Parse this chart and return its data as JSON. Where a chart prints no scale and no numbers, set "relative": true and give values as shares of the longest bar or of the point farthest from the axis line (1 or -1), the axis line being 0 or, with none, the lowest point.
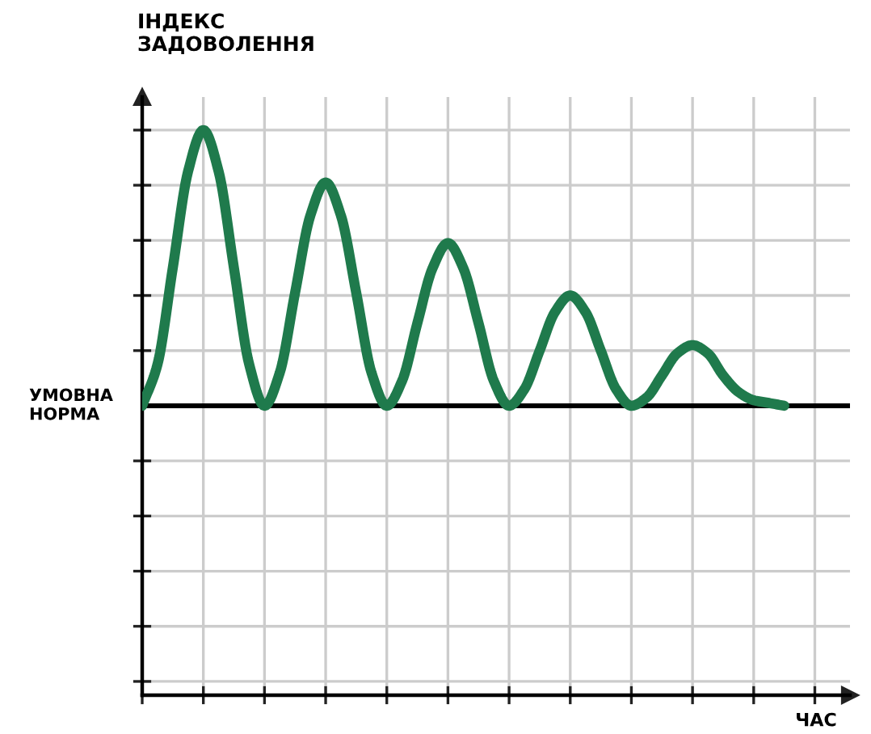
{
  "chart_data": {
    "type": "line",
    "relative": true,
    "ylabel": "ІНДЕКС\nЗАДОВОЛЕННЯ",
    "annotations": [
      "ЧАС"
    ],
    "categories": [
      null,
      null,
      null,
      null,
      null,
      null,
      null,
      null,
      null,
      null,
      null,
      null,
      null,
      null,
      null,
      null,
      null,
      null,
      null,
      null,
      null,
      null,
      null,
      null,
      null,
      null,
      null,
      null,
      null,
      null,
      null,
      null,
      null,
      null,
      null,
      null,
      null,
      null,
      null,
      null,
      null,
      null,
      null
    ],
    "series": [
      {
        "color": "#1f7a4c",
        "values": [
          0,
          0.15,
          0.5,
          0.85,
          1,
          0.85,
          0.5,
          0.15,
          0,
          0.12,
          0.41,
          0.69,
          0.81,
          0.69,
          0.41,
          0.12,
          0,
          0.09,
          0.3,
          0.5,
          0.59,
          0.5,
          0.3,
          0.09,
          0,
          0.06,
          0.2,
          0.34,
          0.4,
          0.34,
          0.2,
          0.06,
          0,
          0.03,
          0.11,
          0.19,
          0.22,
          0.19,
          0.11,
          0.05,
          0.02,
          0.01,
          0
        ]
      }
    ],
    "ref_lines": [
      {
        "axis": "y",
        "value": 0,
        "label": "УМОВНА\nНОРМА",
        "color": "#000000"
      }
    ],
    "grid": true,
    "tick_labels": false,
    "marker": "none",
    "line_style": "solid"
  }
}
